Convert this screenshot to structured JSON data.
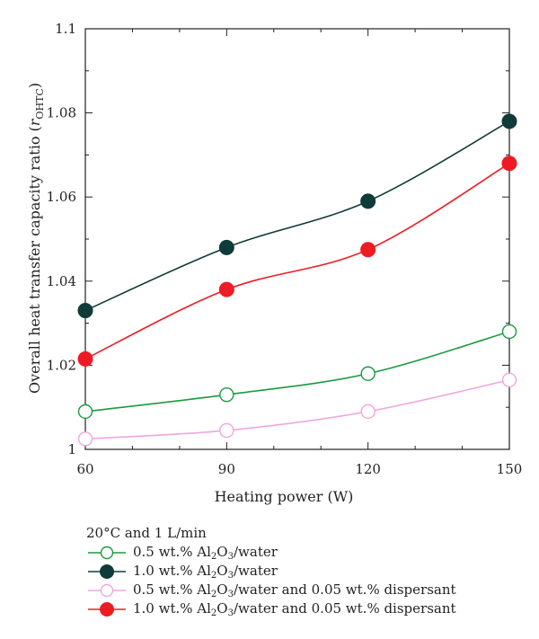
{
  "chart_data": {
    "type": "line",
    "title": "",
    "xlabel": "Heating power (W)",
    "ylabel_main": "Overall heat transfer capacity ratio (",
    "ylabel_italic": "r",
    "ylabel_sub": "OHTC",
    "ylabel_close": ")",
    "x": [
      60,
      90,
      120,
      150
    ],
    "xlim": [
      60,
      150
    ],
    "ylim": [
      1,
      1.1
    ],
    "xticks": [
      60,
      90,
      120,
      150
    ],
    "xtick_labels": [
      "60",
      "90",
      "120",
      "150"
    ],
    "yticks": [
      1,
      1.02,
      1.04,
      1.06,
      1.08,
      1.1
    ],
    "ytick_labels": [
      "1",
      "1.02",
      "1.04",
      "1.06",
      "1.08",
      "1.1"
    ],
    "grid": false,
    "legend_placement": "below",
    "legend_title": "20°C and 1 L/min",
    "series": [
      {
        "name": "0.5 wt.% Al2O3/water",
        "label_parts": [
          "0.5 wt.% Al",
          "2",
          "O",
          "3",
          "/water"
        ],
        "values": [
          1.009,
          1.013,
          1.018,
          1.028
        ],
        "color": "#1b9a3e",
        "marker": "open-circle"
      },
      {
        "name": "1.0 wt.% Al2O3/water",
        "label_parts": [
          "1.0 wt.% Al",
          "2",
          "O",
          "3",
          "/water"
        ],
        "values": [
          1.033,
          1.048,
          1.059,
          1.078
        ],
        "color": "#0f3b38",
        "marker": "filled-circle"
      },
      {
        "name": "0.5 wt.% Al2O3/water and 0.05 wt.% dispersant",
        "label_parts": [
          "0.5 wt.% Al",
          "2",
          "O",
          "3",
          "/water and 0.05 wt.% dispersant"
        ],
        "values": [
          1.0025,
          1.0045,
          1.009,
          1.0165
        ],
        "color": "#f0a6dd",
        "marker": "open-circle"
      },
      {
        "name": "1.0 wt.% Al2O3/water and 0.05 wt.% dispersant",
        "label_parts": [
          "1.0 wt.% Al",
          "2",
          "O",
          "3",
          "/water and 0.05 wt.% dispersant"
        ],
        "values": [
          1.0215,
          1.038,
          1.0475,
          1.068
        ],
        "color": "#ed1c24",
        "marker": "filled-circle"
      }
    ]
  }
}
